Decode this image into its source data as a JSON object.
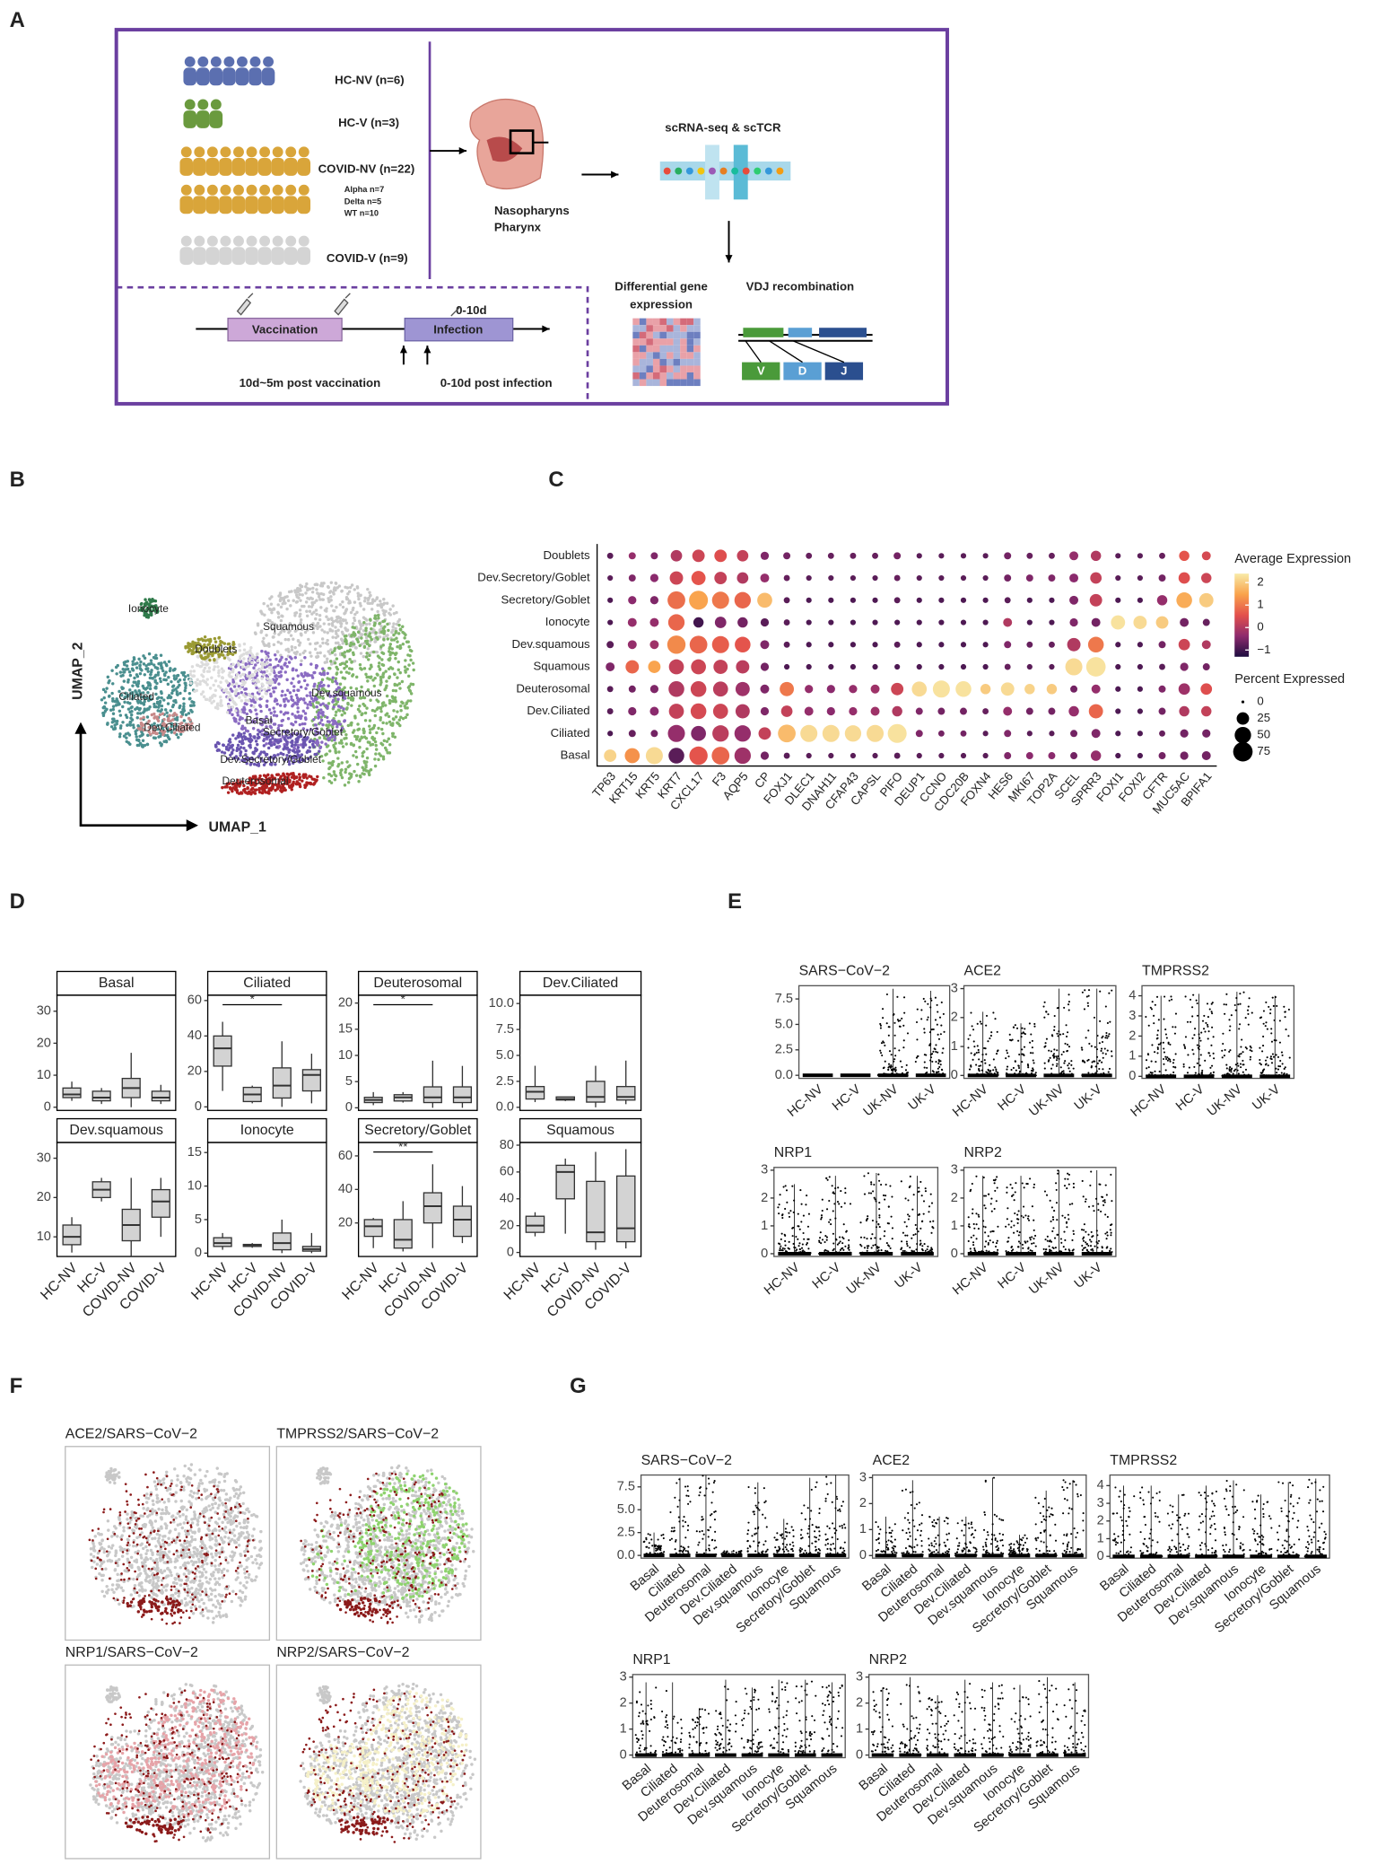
{
  "panel_labels": [
    "A",
    "B",
    "C",
    "D",
    "E",
    "F",
    "G"
  ],
  "design": {
    "cohorts": [
      "HC-NV (n=6)",
      "HC-V (n=3)",
      "COVID-NV (n=22)",
      "COVID-V (n=9)"
    ],
    "variants": [
      "Alpha  n=7",
      "Delta  n=5",
      "WT    n=10"
    ],
    "site": [
      "Nasopharyns",
      "Pharynx"
    ],
    "assay": "scRNA-seq & scTCR",
    "deg": [
      "Differential gene",
      "expression"
    ],
    "vdj": "VDJ recombination",
    "segments": [
      "V",
      "D",
      "J"
    ],
    "timeline": {
      "vaccination": "Vaccination",
      "infection": "Infection",
      "window": "0-10d",
      "post_vaccination": "10d~5m post vaccination",
      "post_infection": "0-10d post infection"
    }
  },
  "umap": {
    "x_label": "UMAP_1",
    "y_label": "UMAP_2",
    "clusters": [
      "Ionocyte",
      "Squamous",
      "Doublets",
      "Ciliated",
      "Dev.squamous",
      "Basal",
      "Secretory/Goblet",
      "Dev.Ciliated",
      "Dev.Secretory/Goblet",
      "Deuterosomal"
    ]
  },
  "dotplot": {
    "genes": [
      "TP63",
      "KRT15",
      "KRT5",
      "KRT7",
      "CXCL17",
      "F3",
      "AQP5",
      "CP",
      "FOXJ1",
      "DLEC1",
      "DNAH11",
      "CFAP43",
      "CAPSL",
      "PIFO",
      "DEUP1",
      "CCNO",
      "CDC20B",
      "FOXN4",
      "HES6",
      "MKI67",
      "TOP2A",
      "SCEL",
      "SPRR3",
      "FOXI1",
      "FOXI2",
      "CFTR",
      "MUC5AC",
      "BPIFA1"
    ],
    "cell_types": [
      "Doublets",
      "Dev.Secretory/Goblet",
      "Secretory/Goblet",
      "Ionocyte",
      "Dev.squamous",
      "Squamous",
      "Deuterosomal",
      "Dev.Ciliated",
      "Ciliated",
      "Basal"
    ],
    "average_expression": [
      [
        -0.8,
        -0.3,
        -0.5,
        0,
        0.3,
        0.5,
        0.2,
        -0.5,
        -0.6,
        -0.7,
        -0.7,
        -0.7,
        -0.7,
        -0.6,
        -0.8,
        -0.8,
        -0.8,
        -0.8,
        -0.6,
        -0.7,
        -0.7,
        -0.3,
        0,
        -0.8,
        -0.8,
        -0.7,
        0.6,
        0.4
      ],
      [
        -0.8,
        -0.5,
        -0.4,
        0.3,
        0.6,
        0.2,
        0,
        -0.3,
        -0.7,
        -0.8,
        -0.8,
        -0.8,
        -0.8,
        -0.7,
        -0.8,
        -0.8,
        -0.8,
        -0.8,
        -0.6,
        -0.5,
        -0.5,
        -0.4,
        0.2,
        -0.8,
        -0.8,
        -0.6,
        0.5,
        0.3
      ],
      [
        -0.9,
        -0.4,
        -0.5,
        0.9,
        1.5,
        1.0,
        0.8,
        1.8,
        -0.8,
        -0.9,
        -0.9,
        -0.9,
        -0.9,
        -0.8,
        -0.9,
        -0.9,
        -0.9,
        -0.9,
        -0.8,
        -0.9,
        -0.9,
        -0.5,
        0.2,
        -0.9,
        -0.9,
        -0.3,
        1.6,
        2.0
      ],
      [
        -0.9,
        -0.3,
        -0.3,
        0.8,
        -1,
        -0.5,
        -0.6,
        -0.8,
        -0.8,
        -0.9,
        -0.9,
        -0.9,
        -0.9,
        -0.9,
        -0.9,
        -0.9,
        -0.9,
        -0.9,
        0,
        -0.9,
        -0.9,
        -0.5,
        -0.6,
        2.3,
        2.2,
        2.0,
        -0.6,
        -0.7
      ],
      [
        -0.8,
        -0.3,
        -0.2,
        1.2,
        0.8,
        0.7,
        0.6,
        -0.5,
        -0.8,
        -0.9,
        -0.9,
        -0.9,
        -0.9,
        -0.8,
        -0.9,
        -0.9,
        -0.9,
        -0.9,
        -0.5,
        -0.7,
        -0.7,
        0,
        1.0,
        -0.9,
        -0.9,
        -0.6,
        0.3,
        0
      ],
      [
        -0.5,
        0.8,
        1.5,
        0.2,
        0.3,
        0.2,
        0.1,
        -0.6,
        -0.9,
        -0.9,
        -0.9,
        -0.9,
        -0.9,
        -0.9,
        -0.9,
        -0.9,
        -0.9,
        -0.9,
        -0.7,
        -0.8,
        -0.8,
        2.2,
        2.3,
        -0.9,
        -0.9,
        -0.8,
        -0.5,
        -0.6
      ],
      [
        -0.8,
        -0.6,
        -0.5,
        0,
        0.3,
        0.1,
        -0.2,
        -0.5,
        1.0,
        -0.3,
        -0.4,
        -0.3,
        -0.2,
        0.3,
        2.2,
        2.3,
        2.3,
        2.0,
        2.2,
        2.1,
        2.0,
        -0.6,
        -0.3,
        -0.9,
        -0.9,
        -0.5,
        -0.2,
        0.5
      ],
      [
        -0.8,
        -0.5,
        -0.4,
        0.2,
        0.4,
        0.3,
        0,
        -0.5,
        0.2,
        -0.3,
        -0.4,
        -0.3,
        -0.2,
        0.0,
        -0.5,
        -0.6,
        -0.6,
        -0.7,
        -0.3,
        -0.6,
        -0.6,
        -0.3,
        0.8,
        -0.9,
        -0.9,
        -0.6,
        0,
        0.2
      ],
      [
        -0.9,
        -0.7,
        -0.6,
        -0.3,
        -0.5,
        0.1,
        -0.3,
        0.2,
        1.8,
        2.2,
        2.2,
        2.2,
        2.2,
        2.3,
        -0.5,
        -0.6,
        -0.6,
        -0.8,
        -0.5,
        -0.8,
        -0.8,
        -0.6,
        -0.5,
        -0.9,
        -0.9,
        -0.7,
        -0.6,
        -0.6
      ],
      [
        2.1,
        1.3,
        2.2,
        -0.8,
        0.6,
        0.8,
        -0.2,
        -0.6,
        -0.8,
        -0.8,
        -0.8,
        -0.8,
        -0.8,
        -0.8,
        -0.8,
        -0.8,
        -0.8,
        -0.8,
        -0.5,
        -0.4,
        -0.4,
        -0.6,
        -0.3,
        -0.9,
        -0.9,
        -0.6,
        -0.6,
        -0.6
      ]
    ],
    "percent_expressed": [
      [
        3,
        5,
        5,
        20,
        25,
        25,
        20,
        8,
        5,
        3,
        3,
        3,
        3,
        5,
        2,
        2,
        2,
        2,
        5,
        3,
        3,
        10,
        15,
        2,
        2,
        3,
        15,
        10
      ],
      [
        2,
        5,
        8,
        30,
        35,
        25,
        20,
        10,
        3,
        2,
        2,
        2,
        2,
        3,
        2,
        2,
        2,
        2,
        5,
        5,
        5,
        10,
        20,
        2,
        2,
        5,
        20,
        15
      ],
      [
        2,
        8,
        8,
        60,
        70,
        55,
        50,
        40,
        3,
        2,
        2,
        2,
        2,
        3,
        2,
        2,
        2,
        2,
        3,
        2,
        2,
        10,
        25,
        2,
        2,
        15,
        45,
        35
      ],
      [
        2,
        10,
        10,
        50,
        15,
        20,
        15,
        8,
        3,
        2,
        2,
        2,
        2,
        2,
        2,
        2,
        2,
        2,
        10,
        2,
        2,
        8,
        10,
        35,
        30,
        25,
        10,
        5
      ],
      [
        5,
        10,
        10,
        65,
        60,
        55,
        45,
        10,
        3,
        2,
        2,
        2,
        2,
        3,
        2,
        2,
        2,
        2,
        5,
        3,
        3,
        30,
        45,
        2,
        2,
        5,
        20,
        10
      ],
      [
        10,
        30,
        25,
        40,
        40,
        35,
        30,
        8,
        2,
        2,
        2,
        2,
        2,
        2,
        2,
        2,
        2,
        2,
        3,
        2,
        2,
        55,
        75,
        2,
        2,
        3,
        8,
        5
      ],
      [
        3,
        5,
        8,
        45,
        45,
        40,
        35,
        10,
        35,
        8,
        8,
        8,
        10,
        25,
        40,
        55,
        45,
        15,
        30,
        15,
        15,
        5,
        10,
        2,
        2,
        5,
        20,
        20
      ],
      [
        3,
        8,
        10,
        40,
        45,
        40,
        35,
        8,
        20,
        10,
        8,
        8,
        10,
        15,
        5,
        5,
        5,
        3,
        10,
        5,
        5,
        15,
        35,
        2,
        2,
        5,
        15,
        15
      ],
      [
        2,
        5,
        5,
        55,
        40,
        50,
        50,
        25,
        60,
        55,
        55,
        50,
        55,
        70,
        5,
        3,
        3,
        2,
        5,
        2,
        2,
        5,
        10,
        2,
        2,
        3,
        8,
        8
      ],
      [
        25,
        40,
        55,
        45,
        65,
        60,
        50,
        8,
        3,
        2,
        2,
        2,
        2,
        3,
        2,
        2,
        2,
        2,
        5,
        5,
        5,
        5,
        15,
        2,
        2,
        5,
        8,
        10
      ]
    ],
    "color_title": "Average Expression",
    "color_lim": [
      -1.3,
      2.4
    ],
    "color_ticks": [
      2,
      1,
      0,
      {
        "value": -1,
        "label": "−1"
      }
    ],
    "colors": [
      "#1d0c3f",
      "#8e2b6e",
      "#e3504c",
      "#f9a24b",
      "#f8eaa8"
    ],
    "size_title": "Percent Expressed",
    "size_ticks": [
      0,
      25,
      50,
      75
    ]
  },
  "proportions": {
    "categories": [
      "HC-NV",
      "HC-V",
      "COVID-NV",
      "COVID-V"
    ],
    "panels": [
      {
        "title": "Basal",
        "ylim": [
          -1,
          35
        ],
        "yticks": [
          0,
          10,
          20,
          30
        ],
        "boxes": [
          [
            2,
            3,
            4,
            6,
            8
          ],
          [
            1,
            2,
            3,
            5,
            6
          ],
          [
            0,
            3,
            6,
            9,
            17
          ],
          [
            1,
            2,
            3,
            5,
            7
          ]
        ]
      },
      {
        "title": "Ciliated",
        "ylim": [
          -2,
          63
        ],
        "yticks": [
          0,
          20,
          40,
          60
        ],
        "boxes": [
          [
            9,
            23,
            33,
            40,
            48
          ],
          [
            2,
            3,
            7,
            11,
            12
          ],
          [
            0,
            5,
            12,
            22,
            37
          ],
          [
            2,
            9,
            18,
            21,
            30
          ]
        ],
        "significance": "*"
      },
      {
        "title": "Deuterosomal",
        "ylim": [
          -0.5,
          21.5
        ],
        "yticks": [
          0,
          5,
          10,
          15,
          20
        ],
        "boxes": [
          [
            0.5,
            1,
            1.5,
            2,
            3
          ],
          [
            1,
            1.3,
            2,
            2.5,
            3
          ],
          [
            0,
            1,
            2,
            4,
            9
          ],
          [
            0,
            1,
            2,
            4,
            8
          ]
        ],
        "significance": "*"
      },
      {
        "title": "Dev.Ciliated",
        "ylim": [
          -0.3,
          10.8
        ],
        "yticks": [
          {
            "value": 0,
            "label": "0.0"
          },
          {
            "value": 2.5,
            "label": "2.5"
          },
          {
            "value": 5,
            "label": "5.0"
          },
          {
            "value": 7.5,
            "label": "7.5"
          },
          {
            "value": 10,
            "label": "10.0"
          }
        ],
        "boxes": [
          [
            0.5,
            0.8,
            1.5,
            2,
            4
          ],
          [
            0.6,
            0.7,
            0.8,
            1,
            1
          ],
          [
            0,
            0.5,
            1,
            2.5,
            4
          ],
          [
            0.3,
            0.7,
            1,
            2,
            4.5
          ]
        ]
      },
      {
        "title": "Dev.squamous",
        "ylim": [
          5,
          34
        ],
        "yticks": [
          10,
          20,
          30
        ],
        "boxes": [
          [
            6,
            8,
            10,
            13,
            15
          ],
          [
            19,
            20,
            22,
            24,
            25
          ],
          [
            5,
            9,
            13,
            17,
            25
          ],
          [
            10,
            15,
            19,
            22,
            25
          ]
        ]
      },
      {
        "title": "Ionocyte",
        "ylim": [
          -0.5,
          16.5
        ],
        "yticks": [
          0,
          5,
          10,
          15
        ],
        "boxes": [
          [
            0.5,
            1,
            1.5,
            2.3,
            3
          ],
          [
            0.8,
            1,
            1.2,
            1.3,
            1.5
          ],
          [
            0,
            0.5,
            1.5,
            3,
            5
          ],
          [
            0,
            0.3,
            0.6,
            1,
            3
          ]
        ]
      },
      {
        "title": "Secretory/Goblet",
        "ylim": [
          0,
          68
        ],
        "yticks": [
          20,
          40,
          60
        ],
        "boxes": [
          [
            5,
            12,
            18,
            22,
            23
          ],
          [
            3,
            5,
            10,
            22,
            33
          ],
          [
            5,
            20,
            30,
            38,
            55
          ],
          [
            8,
            12,
            22,
            30,
            42
          ]
        ],
        "significance": "**"
      },
      {
        "title": "Squamous",
        "ylim": [
          -3,
          82
        ],
        "yticks": [
          0,
          20,
          40,
          60,
          80
        ],
        "boxes": [
          [
            12,
            15,
            20,
            27,
            30
          ],
          [
            14,
            40,
            60,
            65,
            70
          ],
          [
            2,
            8,
            15,
            53,
            75
          ],
          [
            3,
            8,
            18,
            57,
            77
          ]
        ]
      }
    ]
  },
  "expression_by_condition": {
    "categories": [
      "HC-NV",
      "HC-V",
      "UK-NV",
      "UK-V"
    ],
    "panels": [
      {
        "title": "SARS−CoV−2",
        "ylim": [
          -0.3,
          8.8
        ],
        "yticks": [
          {
            "value": 0,
            "label": "0.0"
          },
          {
            "value": 2.5,
            "label": "2.5"
          },
          {
            "value": 5,
            "label": "5.0"
          },
          {
            "value": 7.5,
            "label": "7.5"
          }
        ],
        "max": [
          0,
          0,
          8.5,
          8.3
        ]
      },
      {
        "title": "ACE2",
        "ylim": [
          -0.1,
          3.1
        ],
        "yticks": [
          0,
          1,
          2,
          3
        ],
        "max": [
          2.2,
          1.8,
          3,
          3
        ]
      },
      {
        "title": "TMPRSS2",
        "ylim": [
          -0.1,
          4.5
        ],
        "yticks": [
          0,
          1,
          2,
          3,
          4
        ],
        "max": [
          4,
          4.1,
          4.2,
          4
        ]
      },
      {
        "title": "NRP1",
        "ylim": [
          -0.1,
          3.1
        ],
        "yticks": [
          0,
          1,
          2,
          3
        ],
        "max": [
          2.5,
          2.8,
          2.9,
          2.8
        ]
      },
      {
        "title": "NRP2",
        "ylim": [
          -0.1,
          3.1
        ],
        "yticks": [
          0,
          1,
          2,
          3
        ],
        "max": [
          2.8,
          2.8,
          3,
          3
        ]
      }
    ]
  },
  "feature_umaps": {
    "titles": [
      "ACE2/SARS−CoV−2",
      "TMPRSS2/SARS−CoV−2",
      "NRP1/SARS−CoV−2",
      "NRP2/SARS−CoV−2"
    ]
  },
  "expression_by_celltype": {
    "categories": [
      "Basal",
      "Ciliated",
      "Deuterosomal",
      "Dev.Ciliated",
      "Dev.squamous",
      "Ionocyte",
      "Secretory/Goblet",
      "Squamous"
    ],
    "panels": [
      {
        "title": "SARS−CoV−2",
        "ylim": [
          -0.3,
          8.8
        ],
        "yticks": [
          {
            "value": 0,
            "label": "0.0"
          },
          {
            "value": 2.5,
            "label": "2.5"
          },
          {
            "value": 5,
            "label": "5.0"
          },
          {
            "value": 7.5,
            "label": "7.5"
          }
        ],
        "max": [
          2.5,
          8.5,
          8.8,
          0.5,
          8,
          4,
          8.5,
          8.8
        ]
      },
      {
        "title": "ACE2",
        "ylim": [
          -0.1,
          3.1
        ],
        "yticks": [
          0,
          1,
          2,
          3
        ],
        "max": [
          1.5,
          2.9,
          1.5,
          1.5,
          3,
          0.8,
          2.5,
          2.9
        ]
      },
      {
        "title": "TMPRSS2",
        "ylim": [
          -0.1,
          4.6
        ],
        "yticks": [
          0,
          1,
          2,
          3,
          4
        ],
        "max": [
          4,
          4,
          3.5,
          4,
          4.3,
          3.5,
          4.2,
          4.4
        ]
      },
      {
        "title": "NRP1",
        "ylim": [
          -0.1,
          3.1
        ],
        "yticks": [
          0,
          1,
          2,
          3
        ],
        "max": [
          2.8,
          2.8,
          1.8,
          2.9,
          2.6,
          2.9,
          2.9,
          2.8
        ]
      },
      {
        "title": "NRP2",
        "ylim": [
          -0.1,
          3.1
        ],
        "yticks": [
          0,
          1,
          2,
          3
        ],
        "max": [
          2.6,
          3,
          2.3,
          2.9,
          2.8,
          2.7,
          3,
          2.8
        ]
      }
    ]
  }
}
